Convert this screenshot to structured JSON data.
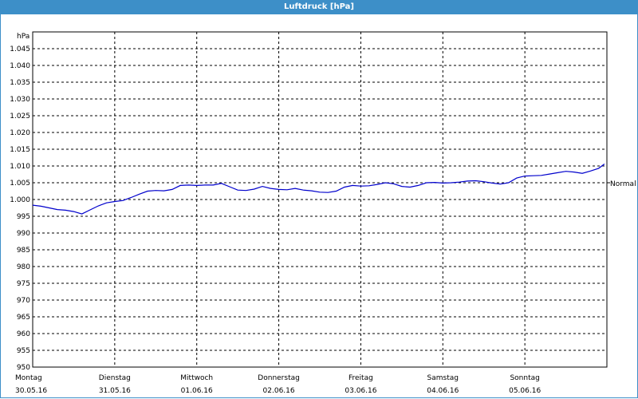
{
  "window": {
    "title": "Luftdruck [hPa]"
  },
  "chart_data": {
    "type": "line",
    "title": "Luftdruck [hPa]",
    "ylabel": "hPa",
    "ylim": [
      950,
      1050
    ],
    "yticks": [
      950,
      955,
      960,
      965,
      970,
      975,
      980,
      985,
      990,
      995,
      1000,
      1005,
      1010,
      1015,
      1020,
      1025,
      1030,
      1035,
      1040,
      1045
    ],
    "ytick_labels": [
      "950",
      "955",
      "960",
      "965",
      "970",
      "975",
      "980",
      "985",
      "990",
      "995",
      "1.000",
      "1.005",
      "1.010",
      "1.015",
      "1.020",
      "1.025",
      "1.030",
      "1.035",
      "1.040",
      "1.045"
    ],
    "xlim": [
      0,
      7
    ],
    "days": [
      {
        "day": "Montag",
        "date": "30.05.16"
      },
      {
        "day": "Dienstag",
        "date": "31.05.16"
      },
      {
        "day": "Mittwoch",
        "date": "01.06.16"
      },
      {
        "day": "Donnerstag",
        "date": "02.06.16"
      },
      {
        "day": "Freitag",
        "date": "03.06.16"
      },
      {
        "day": "Samstag",
        "date": "04.06.16"
      },
      {
        "day": "Sonntag",
        "date": "05.06.16"
      }
    ],
    "grid": true,
    "reference_line": {
      "label": "Normal",
      "value": 1005
    },
    "series": [
      {
        "color": "#0000cc",
        "x": [
          0,
          0.1,
          0.2,
          0.3,
          0.4,
          0.5,
          0.6,
          0.7,
          0.8,
          0.9,
          1.0,
          1.1,
          1.2,
          1.3,
          1.4,
          1.5,
          1.6,
          1.7,
          1.8,
          1.9,
          2.0,
          2.1,
          2.2,
          2.3,
          2.4,
          2.5,
          2.6,
          2.7,
          2.8,
          2.9,
          3.0,
          3.1,
          3.2,
          3.3,
          3.4,
          3.5,
          3.6,
          3.7,
          3.8,
          3.9,
          4.0,
          4.1,
          4.2,
          4.3,
          4.4,
          4.5,
          4.6,
          4.7,
          4.8,
          4.9,
          5.0,
          5.1,
          5.2,
          5.3,
          5.4,
          5.5,
          5.6,
          5.7,
          5.8,
          5.9,
          6.0,
          6.1,
          6.2,
          6.3,
          6.4,
          6.5,
          6.6,
          6.7,
          6.8,
          6.9,
          6.97
        ],
        "y": [
          998.3,
          998.0,
          997.5,
          997.0,
          996.8,
          996.4,
          995.7,
          996.9,
          998.1,
          999.0,
          999.4,
          999.7,
          1000.6,
          1001.6,
          1002.5,
          1002.7,
          1002.6,
          1003.0,
          1004.2,
          1004.3,
          1004.2,
          1004.3,
          1004.3,
          1004.8,
          1003.8,
          1002.8,
          1002.7,
          1003.1,
          1003.9,
          1003.3,
          1003.0,
          1002.9,
          1003.3,
          1002.8,
          1002.6,
          1002.2,
          1002.1,
          1002.5,
          1003.7,
          1004.2,
          1004.0,
          1004.1,
          1004.5,
          1005.0,
          1004.7,
          1003.9,
          1003.7,
          1004.2,
          1005.0,
          1005.1,
          1004.9,
          1005.0,
          1005.2,
          1005.5,
          1005.6,
          1005.3,
          1004.9,
          1004.6,
          1005.0,
          1006.4,
          1007.0,
          1007.1,
          1007.2,
          1007.6,
          1008.0,
          1008.4,
          1008.2,
          1007.8,
          1008.5,
          1009.3,
          1010.6
        ]
      }
    ]
  }
}
